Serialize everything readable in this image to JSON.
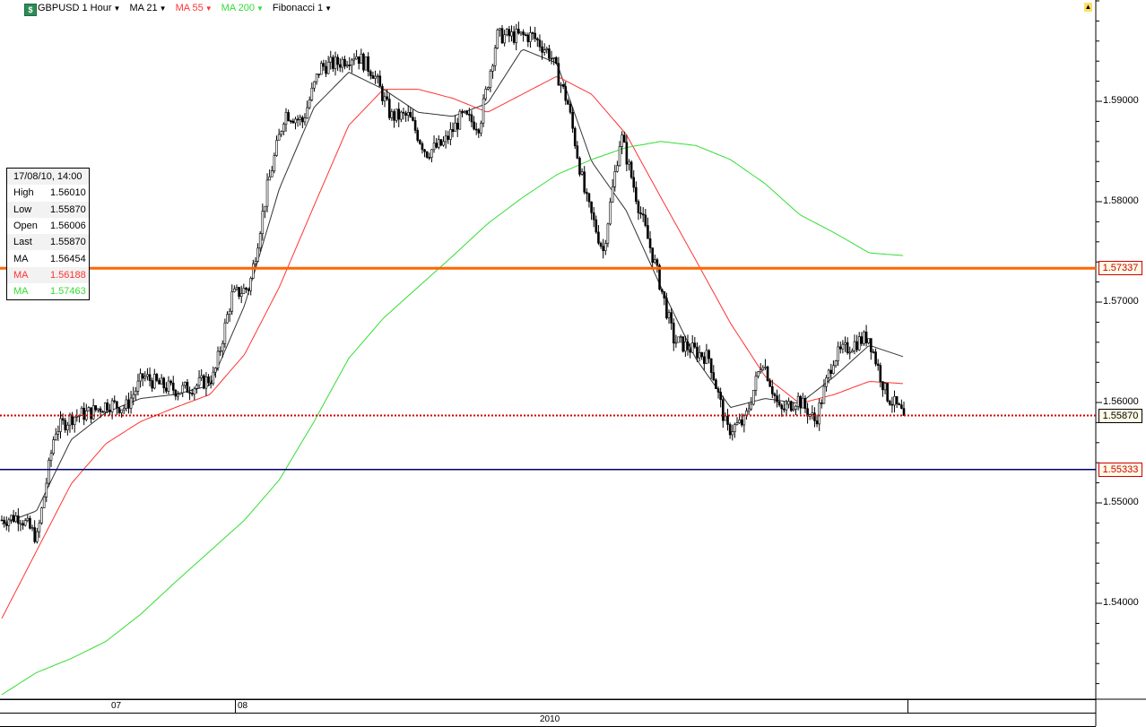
{
  "toolbar": {
    "symbol": "GBPUSD 1 Hour",
    "ma1": "MA 21",
    "ma2": "MA 55",
    "ma3": "MA 200",
    "fib": "Fibonacci 1",
    "logo_icon": "chart-logo-icon",
    "corner_icon": "arrow-up-icon"
  },
  "colors": {
    "ma21": "#333333",
    "ma55": "#ff3333",
    "ma200": "#33dd33",
    "orange_line": "#ff6600",
    "dotted_line": "#cc0000",
    "navy_line": "#000066"
  },
  "infobox": {
    "date": "17/08/10, 14:00",
    "rows": [
      {
        "label": "High",
        "value": "1.56010"
      },
      {
        "label": "Low",
        "value": "1.55870"
      },
      {
        "label": "Open",
        "value": "1.56006"
      },
      {
        "label": "Last",
        "value": "1.55870"
      },
      {
        "label": "MA",
        "value": "1.56454"
      },
      {
        "label": "MA",
        "value": "1.56188"
      },
      {
        "label": "MA",
        "value": "1.57463"
      }
    ]
  },
  "chart_data": {
    "type": "candlestick",
    "title": "GBPUSD 1 Hour",
    "ylim": [
      1.5315,
      1.6001
    ],
    "yticks": [
      "1.59000",
      "1.58000",
      "1.57000",
      "1.56000",
      "1.55000",
      "1.54000"
    ],
    "ytick_values": [
      1.59,
      1.58,
      1.57,
      1.56,
      1.55,
      1.54
    ],
    "xticks": [
      "07",
      "08"
    ],
    "year_label": "2010",
    "close_path": [
      1.5483,
      1.5487,
      1.5465,
      1.5572,
      1.5586,
      1.559,
      1.5599,
      1.5595,
      1.5626,
      1.5617,
      1.5612,
      1.5617,
      1.5626,
      1.5706,
      1.5715,
      1.5813,
      1.5889,
      1.588,
      1.5934,
      1.5938,
      1.5947,
      1.5929,
      1.5885,
      1.5885,
      1.5849,
      1.5858,
      1.5885,
      1.5876,
      1.5965,
      1.5965,
      1.5965,
      1.5947,
      1.5898,
      1.5804,
      1.5751,
      1.5867,
      1.5796,
      1.5733,
      1.5662,
      1.5653,
      1.5644,
      1.5572,
      1.5581,
      1.5644,
      1.559,
      1.5604,
      1.5581,
      1.5644,
      1.5657,
      1.5666,
      1.5608,
      1.5587
    ],
    "series": [
      {
        "name": "MA 21",
        "color": "#333333",
        "values": [
          1.5479,
          1.5492,
          1.5563,
          1.559,
          1.5604,
          1.5608,
          1.5617,
          1.5697,
          1.5813,
          1.5894,
          1.5929,
          1.5912,
          1.5889,
          1.5885,
          1.5898,
          1.5952,
          1.5938,
          1.584,
          1.5791,
          1.5715,
          1.5644,
          1.5595,
          1.5604,
          1.5599,
          1.5626,
          1.5657,
          1.56454
        ]
      },
      {
        "name": "MA 55",
        "color": "#ff3333",
        "values": [
          1.5385,
          1.5452,
          1.5519,
          1.5559,
          1.5581,
          1.5595,
          1.5608,
          1.5648,
          1.5715,
          1.5796,
          1.5876,
          1.5912,
          1.5912,
          1.5903,
          1.5889,
          1.5907,
          1.5925,
          1.5907,
          1.5867,
          1.5804,
          1.5742,
          1.5679,
          1.5626,
          1.5599,
          1.5608,
          1.5621,
          1.56188
        ]
      },
      {
        "name": "MA 200",
        "color": "#33dd33",
        "values": [
          1.5309,
          1.5331,
          1.5345,
          1.5362,
          1.5389,
          1.5421,
          1.5452,
          1.5483,
          1.5523,
          1.5581,
          1.5644,
          1.5684,
          1.5715,
          1.5746,
          1.5778,
          1.5804,
          1.5827,
          1.5842,
          1.5854,
          1.586,
          1.5856,
          1.5842,
          1.5818,
          1.5787,
          1.5769,
          1.5749,
          1.57463
        ]
      }
    ],
    "hlines": [
      {
        "value": 1.57337,
        "label": "1.57337",
        "color": "#ff6600",
        "style": "solid"
      },
      {
        "value": 1.5587,
        "label": "1.55870",
        "color": "#cc0000",
        "style": "dotted"
      },
      {
        "value": 1.55333,
        "label": "1.55333",
        "color": "#000066",
        "style": "solid"
      }
    ]
  }
}
